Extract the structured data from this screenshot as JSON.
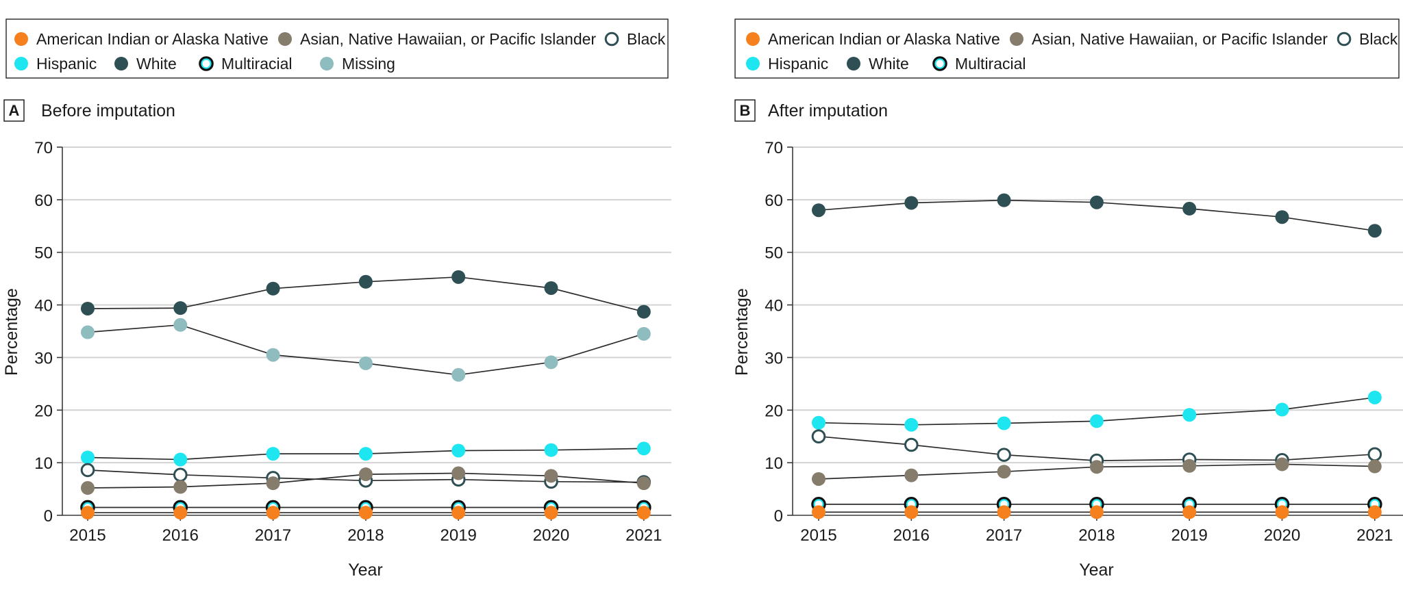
{
  "chart_data": [
    {
      "type": "line",
      "panel_label": "A",
      "title": "Before imputation",
      "xlabel": "Year",
      "ylabel": "Percentage",
      "ylim": [
        0,
        70
      ],
      "yticks": [
        "0",
        "10",
        "20",
        "30",
        "40",
        "50",
        "60",
        "70"
      ],
      "categories": [
        "2015",
        "2016",
        "2017",
        "2018",
        "2019",
        "2020",
        "2021"
      ],
      "grid": "horizontal",
      "legend": [
        "American Indian or Alaska Native",
        "Asian, Native Hawaiian, or Pacific Islander",
        "Black",
        "Hispanic",
        "White",
        "Multiracial",
        "Missing"
      ],
      "series": [
        {
          "name": "White",
          "color": "#2e4f53",
          "style": "filled",
          "values": [
            39.3,
            39.4,
            43.1,
            44.4,
            45.3,
            43.2,
            38.7
          ]
        },
        {
          "name": "Missing",
          "color": "#8fbcbf",
          "style": "filled",
          "values": [
            34.8,
            36.2,
            30.5,
            28.9,
            26.7,
            29.1,
            34.5
          ]
        },
        {
          "name": "Hispanic",
          "color": "#1ee6f0",
          "style": "filled",
          "values": [
            11.0,
            10.6,
            11.7,
            11.7,
            12.3,
            12.4,
            12.7
          ]
        },
        {
          "name": "Black",
          "color": "#2e4f53",
          "style": "open",
          "values": [
            8.6,
            7.7,
            7.1,
            6.6,
            6.8,
            6.4,
            6.3
          ]
        },
        {
          "name": "Asian, Native Hawaiian, or Pacific Islander",
          "color": "#857c6c",
          "style": "filled",
          "values": [
            5.2,
            5.4,
            6.1,
            7.8,
            8.0,
            7.5,
            6.1
          ]
        },
        {
          "name": "Multiracial",
          "color": "#1ee6f0",
          "style": "ringed",
          "values": [
            1.5,
            1.5,
            1.5,
            1.5,
            1.5,
            1.5,
            1.5
          ]
        },
        {
          "name": "American Indian or Alaska Native",
          "color": "#f7801e",
          "style": "filled",
          "values": [
            0.5,
            0.5,
            0.5,
            0.5,
            0.5,
            0.5,
            0.5
          ]
        }
      ]
    },
    {
      "type": "line",
      "panel_label": "B",
      "title": "After imputation",
      "xlabel": "Year",
      "ylabel": "Percentage",
      "ylim": [
        0,
        70
      ],
      "yticks": [
        "0",
        "10",
        "20",
        "30",
        "40",
        "50",
        "60",
        "70"
      ],
      "categories": [
        "2015",
        "2016",
        "2017",
        "2018",
        "2019",
        "2020",
        "2021"
      ],
      "grid": "horizontal",
      "legend": [
        "American Indian or Alaska Native",
        "Asian, Native Hawaiian, or Pacific Islander",
        "Black",
        "Hispanic",
        "White",
        "Multiracial"
      ],
      "series": [
        {
          "name": "White",
          "color": "#2e4f53",
          "style": "filled",
          "values": [
            58.0,
            59.4,
            59.9,
            59.5,
            58.3,
            56.7,
            54.1
          ]
        },
        {
          "name": "Hispanic",
          "color": "#1ee6f0",
          "style": "filled",
          "values": [
            17.6,
            17.2,
            17.5,
            17.9,
            19.1,
            20.1,
            22.4
          ]
        },
        {
          "name": "Black",
          "color": "#2e4f53",
          "style": "open",
          "values": [
            15.0,
            13.4,
            11.5,
            10.4,
            10.6,
            10.5,
            11.6
          ]
        },
        {
          "name": "Asian, Native Hawaiian, or Pacific Islander",
          "color": "#857c6c",
          "style": "filled",
          "values": [
            6.9,
            7.6,
            8.3,
            9.2,
            9.4,
            9.7,
            9.3
          ]
        },
        {
          "name": "Multiracial",
          "color": "#1ee6f0",
          "style": "ringed",
          "values": [
            2.1,
            2.1,
            2.1,
            2.1,
            2.1,
            2.1,
            2.1
          ]
        },
        {
          "name": "American Indian or Alaska Native",
          "color": "#f7801e",
          "style": "filled",
          "values": [
            0.6,
            0.6,
            0.6,
            0.6,
            0.6,
            0.6,
            0.6
          ]
        }
      ]
    }
  ],
  "legend_styles": {
    "American Indian or Alaska Native": {
      "color": "#f7801e",
      "style": "filled"
    },
    "Asian, Native Hawaiian, or Pacific Islander": {
      "color": "#857c6c",
      "style": "filled"
    },
    "Black": {
      "color": "#2e4f53",
      "style": "open"
    },
    "Hispanic": {
      "color": "#1ee6f0",
      "style": "filled"
    },
    "White": {
      "color": "#2e4f53",
      "style": "filled"
    },
    "Multiracial": {
      "color": "#1ee6f0",
      "style": "ringed"
    },
    "Missing": {
      "color": "#8fbcbf",
      "style": "filled"
    }
  },
  "colors": {
    "axis": "#3a3a3a",
    "grid": "#d3d3d3",
    "line": "#2b2b2b",
    "marker_edge": "#1f3436"
  }
}
